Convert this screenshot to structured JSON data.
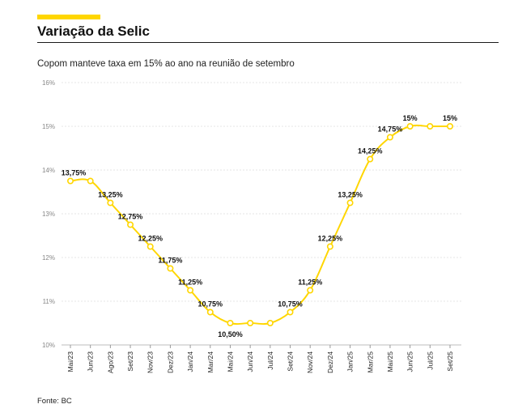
{
  "header": {
    "title": "Variação da Selic",
    "subtitle": "Copom manteve taxa em 15% ao ano na reunião de setembro",
    "accent_color": "#ffd600"
  },
  "footer": {
    "source": "Fonte: BC"
  },
  "chart_data": {
    "type": "line",
    "title": "Variação da Selic",
    "subtitle": "Copom manteve taxa em 15% ao ano na reunião de setembro",
    "xlabel": "",
    "ylabel": "",
    "ylim": [
      10,
      16
    ],
    "yticks": [
      "10%",
      "11%",
      "12%",
      "13%",
      "14%",
      "15%",
      "16%"
    ],
    "grid": true,
    "line_color": "#ffd600",
    "x": [
      "Mai/23",
      "Jun/23",
      "Ago/23",
      "Set/23",
      "Nov/23",
      "Dez/23",
      "Jan/24",
      "Mar/24",
      "Mai/24",
      "Jun/24",
      "Jul/24",
      "Set/24",
      "Nov/24",
      "Dez/24",
      "Jan/25",
      "Mar/25",
      "Mai/25",
      "Jun/25",
      "Jul/25",
      "Set/25"
    ],
    "series": [
      {
        "values": [
          13.75,
          13.75,
          13.25,
          12.75,
          12.25,
          11.75,
          11.25,
          10.75,
          10.5,
          10.5,
          10.5,
          10.75,
          11.25,
          12.25,
          13.25,
          14.25,
          14.75,
          15,
          15,
          15
        ]
      }
    ],
    "point_labels": [
      "13,75%",
      "",
      "13,25%",
      "12,75%",
      "12,25%",
      "11,75%",
      "11,25%",
      "10,75%",
      "10,50%",
      "",
      "",
      "10,75%",
      "11,25%",
      "12,25%",
      "13,25%",
      "14,25%",
      "14,75%",
      "15%",
      "",
      "15%"
    ]
  }
}
